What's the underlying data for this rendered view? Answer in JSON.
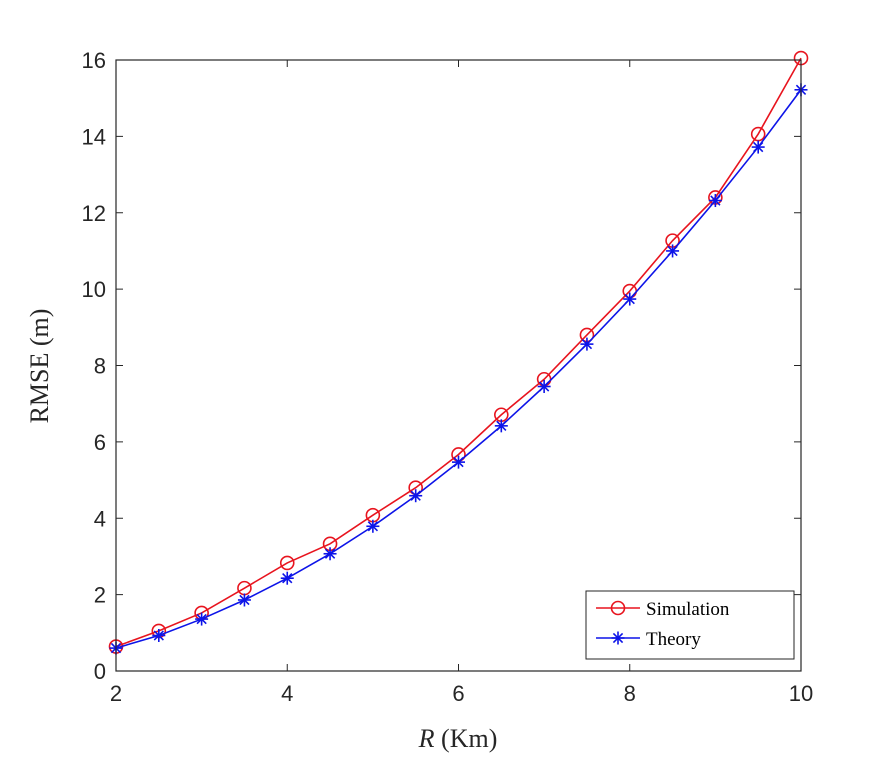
{
  "chart_data": {
    "type": "line",
    "title": "",
    "xlabel_var": "R",
    "xlabel_unit": " (Km)",
    "ylabel": "RMSE (m)",
    "xlim": [
      2,
      10
    ],
    "ylim": [
      0,
      16
    ],
    "xticks": [
      2,
      4,
      6,
      8,
      10
    ],
    "yticks": [
      0,
      2,
      4,
      6,
      8,
      10,
      12,
      14,
      16
    ],
    "x": [
      2,
      2.5,
      3,
      3.5,
      4,
      4.5,
      5,
      5.5,
      6,
      6.5,
      7,
      7.5,
      8,
      8.5,
      9,
      9.5,
      10
    ],
    "series": [
      {
        "name": "Simulation",
        "color": "#e8141e",
        "marker": "circle",
        "values": [
          0.64,
          1.05,
          1.52,
          2.17,
          2.83,
          3.33,
          4.08,
          4.8,
          5.67,
          6.71,
          7.64,
          8.8,
          9.95,
          11.27,
          12.4,
          14.06,
          16.05
        ]
      },
      {
        "name": "Theory",
        "color": "#0d14e8",
        "marker": "asterisk",
        "values": [
          0.6,
          0.93,
          1.36,
          1.86,
          2.43,
          3.07,
          3.79,
          4.59,
          5.47,
          6.42,
          7.45,
          8.56,
          9.74,
          11.0,
          12.32,
          13.72,
          15.22
        ]
      }
    ],
    "legend_position": "bottom-right",
    "grid": false
  }
}
